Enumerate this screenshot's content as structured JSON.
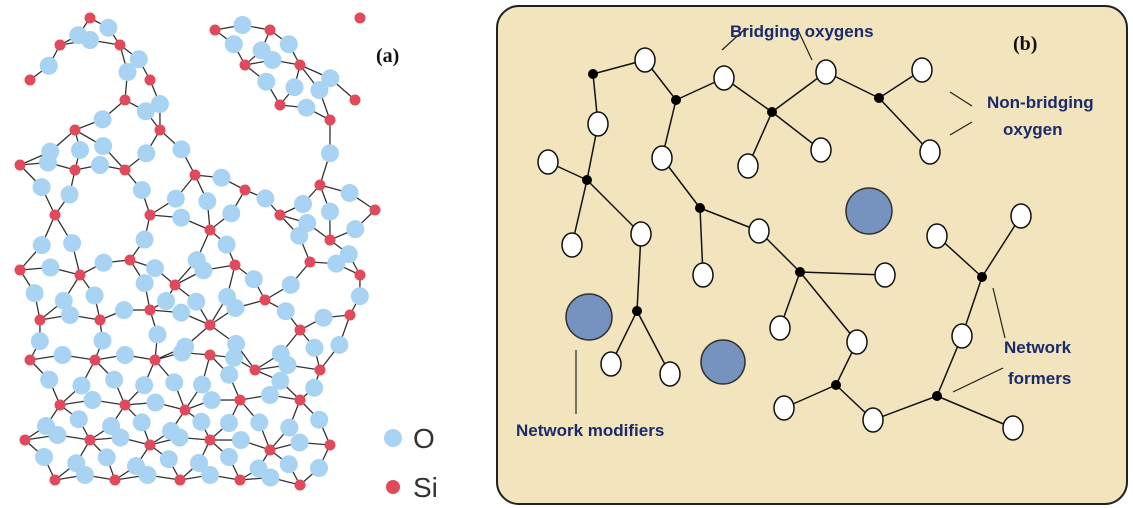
{
  "panel_a": {
    "label": "(a)",
    "legend": [
      {
        "symbol": "oxygen-atom",
        "text": "O",
        "color": "#a9d3f2"
      },
      {
        "symbol": "silicon-atom",
        "text": "Si",
        "color": "#e04a5a"
      }
    ]
  },
  "panel_b": {
    "label": "(b)",
    "background_color": "#f2e5bd",
    "annotations": {
      "bridging": "Bridging oxygens",
      "non_bridging_line1": "Non-bridging",
      "non_bridging_line2": "oxygen",
      "formers_line1": "Network",
      "formers_line2": "formers",
      "modifiers": "Network modifiers"
    },
    "modifier_color": "#7593be"
  }
}
